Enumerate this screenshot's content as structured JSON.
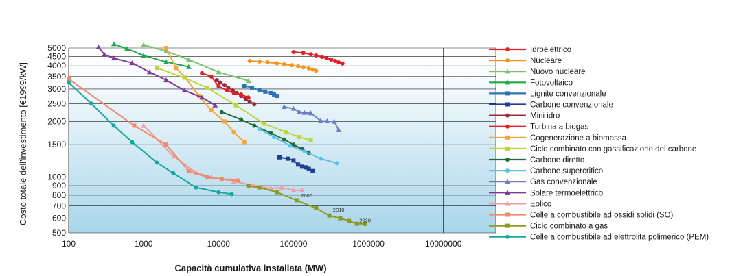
{
  "chart_data": {
    "type": "line",
    "title": "",
    "xlabel": "Capacità cumulativa installata (MW)",
    "ylabel": "Costo totale dell'investimento [€1999/kW]",
    "x_scale": "log",
    "y_scale": "log",
    "xlim": [
      100,
      50000000
    ],
    "ylim": [
      500,
      5000
    ],
    "x_ticks": [
      "100",
      "1000",
      "10000",
      "100000",
      "1000000",
      "10000000"
    ],
    "y_ticks": [
      "5000",
      "4500",
      "4000",
      "3500",
      "3000",
      "2500",
      "2000",
      "1500",
      "1000",
      "900",
      "800",
      "700",
      "600",
      "500"
    ],
    "legend_position": "right",
    "annotations": [
      {
        "text": "2000",
        "x": 150000,
        "y": 780
      },
      {
        "text": "2010",
        "x": 400000,
        "y": 650
      },
      {
        "text": "2030",
        "x": 900000,
        "y": 570
      }
    ],
    "series": [
      {
        "name": "Idroelettrico",
        "color": "#e41e25",
        "marker": "circle",
        "points": [
          [
            100000,
            4750
          ],
          [
            135000,
            4700
          ],
          [
            170000,
            4620
          ],
          [
            200000,
            4550
          ],
          [
            240000,
            4470
          ],
          [
            275000,
            4400
          ],
          [
            320000,
            4320
          ],
          [
            360000,
            4250
          ],
          [
            400000,
            4180
          ],
          [
            450000,
            4120
          ]
        ]
      },
      {
        "name": "Nucleare",
        "color": "#f7941d",
        "marker": "circle",
        "points": [
          [
            26000,
            4250
          ],
          [
            35000,
            4220
          ],
          [
            45000,
            4180
          ],
          [
            60000,
            4130
          ],
          [
            75000,
            4080
          ],
          [
            95000,
            4030
          ],
          [
            115000,
            3980
          ],
          [
            135000,
            3930
          ],
          [
            160000,
            3880
          ],
          [
            180000,
            3820
          ],
          [
            200000,
            3760
          ]
        ]
      },
      {
        "name": "Nuovo nucleare",
        "color": "#76c46c",
        "marker": "triangle",
        "points": [
          [
            1000,
            5200
          ],
          [
            2000,
            4800
          ],
          [
            4000,
            4320
          ],
          [
            10000,
            3700
          ],
          [
            25000,
            3320
          ]
        ]
      },
      {
        "name": "Fotovoltaico",
        "color": "#1ea84a",
        "marker": "triangle",
        "points": [
          [
            400,
            5250
          ],
          [
            600,
            4950
          ],
          [
            1000,
            4550
          ],
          [
            2000,
            4200
          ],
          [
            4000,
            3950
          ]
        ]
      },
      {
        "name": "Lignite convenzionale",
        "color": "#2d74b5",
        "marker": "square",
        "points": [
          [
            22000,
            3120
          ],
          [
            28000,
            3050
          ],
          [
            35000,
            2950
          ],
          [
            42000,
            2900
          ],
          [
            50000,
            2850
          ],
          [
            55000,
            2800
          ],
          [
            60000,
            2750
          ]
        ]
      },
      {
        "name": "Carbone convenzionale",
        "color": "#1f3f8f",
        "marker": "square",
        "points": [
          [
            65000,
            1280
          ],
          [
            85000,
            1260
          ],
          [
            100000,
            1230
          ],
          [
            115000,
            1170
          ],
          [
            130000,
            1140
          ],
          [
            145000,
            1130
          ],
          [
            160000,
            1110
          ],
          [
            180000,
            1080
          ]
        ]
      },
      {
        "name": "Mini idro",
        "color": "#9b2b3a",
        "marker": "circle",
        "points": [
          [
            9500,
            3350
          ],
          [
            10500,
            3250
          ],
          [
            12000,
            3150
          ],
          [
            13500,
            3050
          ],
          [
            15500,
            2950
          ],
          [
            17500,
            2850
          ],
          [
            20000,
            2750
          ],
          [
            23000,
            2650
          ],
          [
            26000,
            2560
          ],
          [
            30000,
            2480
          ]
        ]
      },
      {
        "name": "Turbina a biogas",
        "color": "#e41e25",
        "marker": "circle",
        "points": [
          [
            6000,
            3650
          ],
          [
            8000,
            3500
          ],
          [
            10000,
            3100
          ],
          [
            13000,
            2950
          ],
          [
            16000,
            2850
          ],
          [
            20000,
            2800
          ],
          [
            25000,
            2700
          ]
        ]
      },
      {
        "name": "Cogenerazione a biomassa",
        "color": "#f7a33e",
        "marker": "square",
        "points": [
          [
            2000,
            5000
          ],
          [
            2700,
            3900
          ],
          [
            3600,
            3450
          ],
          [
            5500,
            2750
          ],
          [
            8000,
            2300
          ],
          [
            12000,
            2000
          ],
          [
            16000,
            1750
          ],
          [
            22000,
            1550
          ]
        ]
      },
      {
        "name": "Ciclo combinato con gassificazione del carbone",
        "color": "#bcd53d",
        "marker": "square",
        "points": [
          [
            1500,
            3900
          ],
          [
            3500,
            3450
          ],
          [
            7000,
            3050
          ],
          [
            17000,
            2450
          ],
          [
            40000,
            1950
          ],
          [
            80000,
            1750
          ],
          [
            120000,
            1650
          ],
          [
            170000,
            1580
          ]
        ]
      },
      {
        "name": "Carbone diretto",
        "color": "#1e6b3a",
        "marker": "circle",
        "points": [
          [
            11000,
            2250
          ],
          [
            20000,
            2050
          ],
          [
            30000,
            1900
          ],
          [
            50000,
            1730
          ],
          [
            75000,
            1600
          ],
          [
            100000,
            1500
          ],
          [
            130000,
            1420
          ],
          [
            160000,
            1350
          ]
        ]
      },
      {
        "name": "Carbone supercritico",
        "color": "#5bc1e6",
        "marker": "circle",
        "points": [
          [
            35000,
            1820
          ],
          [
            55000,
            1650
          ],
          [
            90000,
            1480
          ],
          [
            140000,
            1380
          ],
          [
            230000,
            1260
          ],
          [
            380000,
            1190
          ]
        ]
      },
      {
        "name": "Gas convenzionale",
        "color": "#6d7dc2",
        "marker": "triangle",
        "points": [
          [
            75000,
            2400
          ],
          [
            100000,
            2350
          ],
          [
            120000,
            2250
          ],
          [
            140000,
            2230
          ],
          [
            170000,
            2220
          ],
          [
            230000,
            2020
          ],
          [
            280000,
            2010
          ],
          [
            350000,
            2000
          ],
          [
            400000,
            1800
          ]
        ]
      },
      {
        "name": "Solare termoelettrico",
        "color": "#7e3a96",
        "marker": "triangle",
        "points": [
          [
            250,
            5050
          ],
          [
            300,
            4600
          ],
          [
            400,
            4400
          ],
          [
            700,
            4150
          ],
          [
            1200,
            3700
          ],
          [
            2000,
            3350
          ],
          [
            3500,
            2950
          ],
          [
            6000,
            2700
          ],
          [
            9000,
            2450
          ]
        ]
      },
      {
        "name": "Eolico",
        "color": "#f59aa0",
        "marker": "triangle",
        "points": [
          [
            1000,
            1900
          ],
          [
            2500,
            1300
          ],
          [
            5000,
            1060
          ],
          [
            8000,
            1000
          ],
          [
            16000,
            950
          ],
          [
            30000,
            900
          ],
          [
            50000,
            870
          ],
          [
            70000,
            880
          ],
          [
            100000,
            850
          ],
          [
            130000,
            850
          ]
        ]
      },
      {
        "name": "Celle a combustibile ad ossidi solidi (SO)",
        "color": "#ef8a6d",
        "marker": "square",
        "points": [
          [
            100,
            3400
          ],
          [
            750,
            1900
          ],
          [
            2000,
            1500
          ],
          [
            4000,
            1080
          ],
          [
            7000,
            1000
          ],
          [
            11000,
            980
          ],
          [
            18000,
            960
          ]
        ]
      },
      {
        "name": "Ciclo combinato a gas",
        "color": "#8c9a20",
        "marker": "square",
        "points": [
          [
            25000,
            900
          ],
          [
            35000,
            880
          ],
          [
            60000,
            830
          ],
          [
            110000,
            750
          ],
          [
            200000,
            680
          ],
          [
            300000,
            620
          ],
          [
            420000,
            600
          ],
          [
            550000,
            580
          ],
          [
            700000,
            560
          ],
          [
            900000,
            560
          ]
        ]
      },
      {
        "name": "Celle a combustibile ad elettrolita polimerico (PEM)",
        "color": "#12a7a0",
        "marker": "circle",
        "points": [
          [
            100,
            3250
          ],
          [
            200,
            2500
          ],
          [
            400,
            1900
          ],
          [
            700,
            1550
          ],
          [
            1500,
            1200
          ],
          [
            2500,
            1050
          ],
          [
            5000,
            880
          ],
          [
            10000,
            830
          ],
          [
            15000,
            810
          ]
        ]
      }
    ]
  }
}
